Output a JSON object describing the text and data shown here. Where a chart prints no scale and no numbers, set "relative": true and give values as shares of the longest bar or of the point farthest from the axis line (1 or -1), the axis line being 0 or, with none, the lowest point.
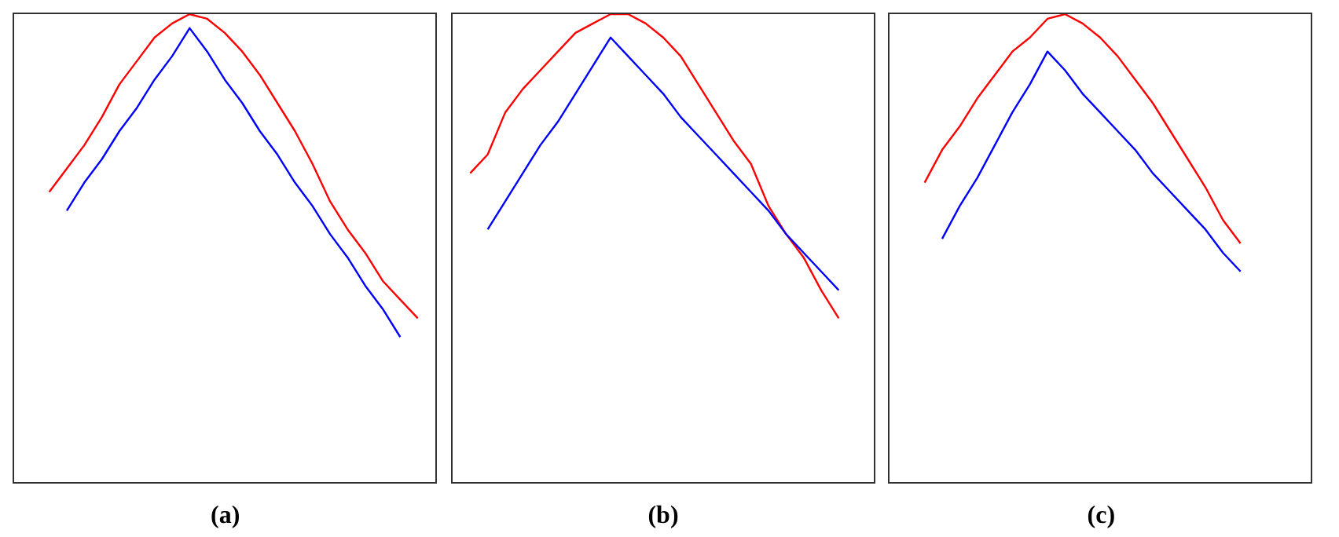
{
  "chart_data": [
    {
      "type": "line",
      "title": "(a)",
      "relative": true,
      "categories": [
        null,
        null,
        null,
        null,
        null,
        null,
        null,
        null,
        null,
        null,
        null,
        null,
        null,
        null,
        null,
        null,
        null,
        null,
        null,
        null,
        null,
        null,
        null,
        null,
        null
      ],
      "series": [
        {
          "color": "#ff0000",
          "values": [
            null,
            null,
            0.62,
            0.67,
            0.72,
            0.78,
            0.85,
            0.9,
            0.95,
            0.98,
            1.0,
            0.99,
            0.96,
            0.92,
            0.87,
            0.81,
            0.75,
            0.68,
            0.6,
            0.54,
            0.49,
            0.43,
            0.39,
            0.35,
            null
          ]
        },
        {
          "color": "#0000ff",
          "values": [
            null,
            null,
            null,
            0.58,
            0.64,
            0.69,
            0.75,
            0.8,
            0.86,
            0.91,
            0.97,
            0.92,
            0.86,
            0.81,
            0.75,
            0.7,
            0.64,
            0.59,
            0.53,
            0.48,
            0.42,
            0.37,
            0.31,
            null,
            null
          ]
        }
      ]
    },
    {
      "type": "line",
      "title": "(b)",
      "relative": true,
      "categories": [
        null,
        null,
        null,
        null,
        null,
        null,
        null,
        null,
        null,
        null,
        null,
        null,
        null,
        null,
        null,
        null,
        null,
        null,
        null,
        null,
        null,
        null,
        null,
        null,
        null
      ],
      "series": [
        {
          "color": "#ff0000",
          "values": [
            null,
            0.66,
            0.7,
            0.79,
            0.84,
            0.88,
            0.92,
            0.96,
            0.98,
            1.0,
            1.0,
            0.98,
            0.95,
            0.91,
            0.85,
            0.79,
            0.73,
            0.68,
            0.59,
            0.53,
            0.48,
            0.41,
            0.35,
            null,
            null
          ]
        },
        {
          "color": "#0000ff",
          "values": [
            null,
            null,
            0.54,
            0.6,
            0.66,
            0.72,
            0.77,
            0.83,
            0.89,
            0.95,
            0.91,
            0.87,
            0.83,
            0.78,
            0.74,
            0.7,
            0.66,
            0.62,
            0.58,
            0.53,
            0.49,
            0.45,
            0.41,
            null,
            null
          ]
        }
      ]
    },
    {
      "type": "line",
      "title": "(c)",
      "relative": true,
      "categories": [
        null,
        null,
        null,
        null,
        null,
        null,
        null,
        null,
        null,
        null,
        null,
        null,
        null,
        null,
        null,
        null,
        null,
        null,
        null,
        null,
        null,
        null,
        null,
        null,
        null
      ],
      "series": [
        {
          "color": "#ff0000",
          "values": [
            null,
            null,
            0.64,
            0.71,
            0.76,
            0.82,
            0.87,
            0.92,
            0.95,
            0.99,
            1.0,
            0.98,
            0.95,
            0.91,
            0.86,
            0.81,
            0.75,
            0.69,
            0.63,
            0.56,
            0.51,
            null,
            null,
            null,
            null
          ]
        },
        {
          "color": "#0000ff",
          "values": [
            null,
            null,
            null,
            0.52,
            0.59,
            0.65,
            0.72,
            0.79,
            0.85,
            0.92,
            0.88,
            0.83,
            0.79,
            0.75,
            0.71,
            0.66,
            0.62,
            0.58,
            0.54,
            0.49,
            0.45,
            null,
            null,
            null,
            null
          ]
        }
      ]
    }
  ]
}
